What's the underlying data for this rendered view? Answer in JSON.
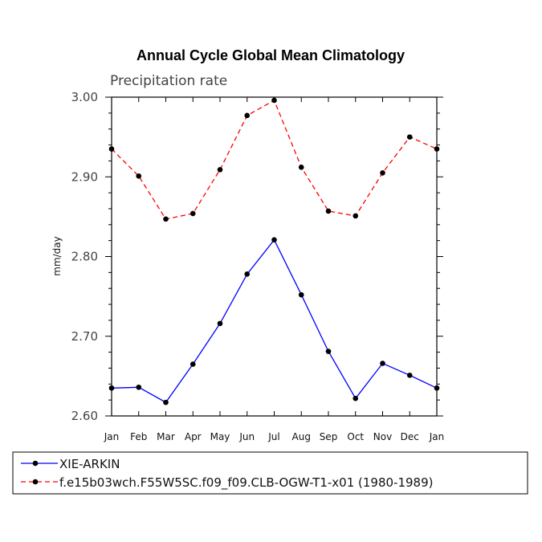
{
  "chart_data": {
    "type": "line",
    "title": "Annual Cycle Global Mean Climatology",
    "subtitle": "Precipitation rate",
    "xlabel": "",
    "ylabel": "mm/day",
    "ylim": [
      2.6,
      3.0
    ],
    "yticks": [
      "2.60",
      "2.70",
      "2.80",
      "2.90",
      "3.00"
    ],
    "categories": [
      "Jan",
      "Feb",
      "Mar",
      "Apr",
      "May",
      "Jun",
      "Jul",
      "Aug",
      "Sep",
      "Oct",
      "Nov",
      "Dec",
      "Jan"
    ],
    "grid": false,
    "legend_position": "bottom",
    "series": [
      {
        "name": "XIE-ARKIN",
        "color": "#0000ff",
        "dash": "solid",
        "values": [
          2.635,
          2.636,
          2.617,
          2.665,
          2.716,
          2.778,
          2.821,
          2.752,
          2.681,
          2.622,
          2.666,
          2.651,
          2.635
        ]
      },
      {
        "name": "f.e15b03wch.F55W5SC.f09_f09.CLB-OGW-T1-x01 (1980-1989)",
        "color": "#ff0000",
        "dash": "dashed",
        "values": [
          2.935,
          2.901,
          2.847,
          2.854,
          2.909,
          2.977,
          2.996,
          2.912,
          2.857,
          2.851,
          2.905,
          2.95,
          2.935
        ]
      }
    ]
  }
}
